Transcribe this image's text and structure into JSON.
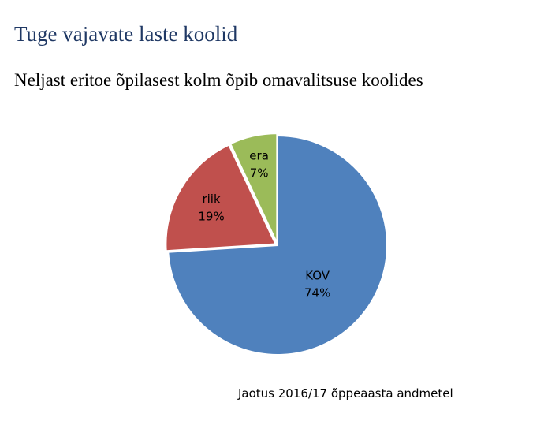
{
  "page": {
    "title": "Tuge vajavate laste koolid",
    "subtitle": "Neljast eritoe õpilasest kolm õpib omavalitsuse koolides",
    "footnote": "Jaotus 2016/17 õppeaasta andmetel"
  },
  "chart_data": {
    "type": "pie",
    "title": "",
    "start": "12 o'clock, clockwise",
    "slices": [
      {
        "name": "KOV",
        "value": 74,
        "label": "74%",
        "color": "#4f81bd"
      },
      {
        "name": "riik",
        "value": 19,
        "label": "19%",
        "color": "#c0504d"
      },
      {
        "name": "era",
        "value": 7,
        "label": "7%",
        "color": "#9bbb59"
      }
    ]
  }
}
